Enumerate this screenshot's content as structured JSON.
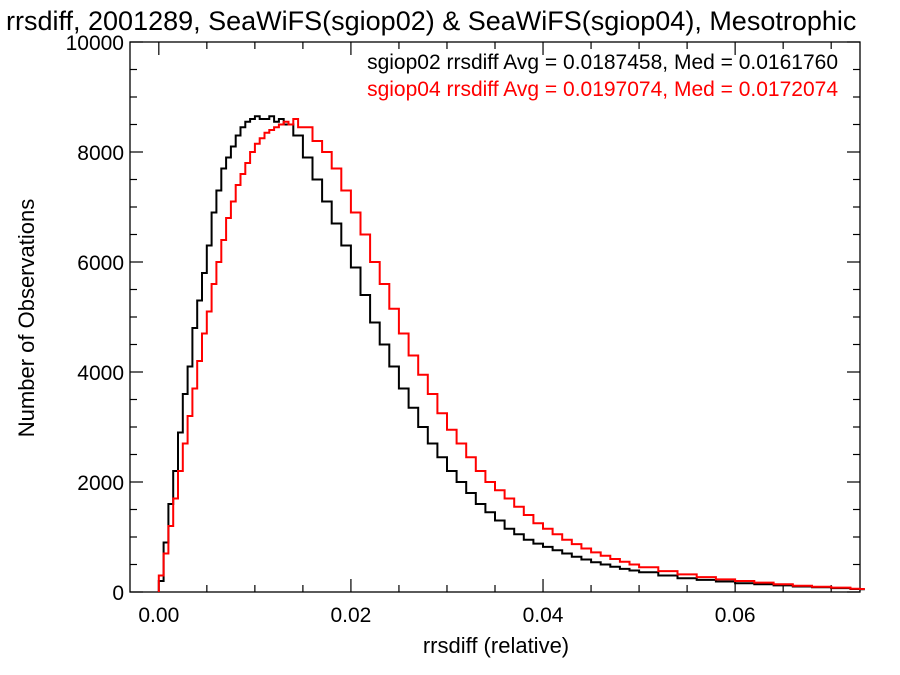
{
  "chart_data": {
    "type": "line",
    "title": "rrsdiff, 2001289, SeaWiFS(sgiop02) & SeaWiFS(sgiop04), Mesotrophic",
    "xlabel": "rrsdiff (relative)",
    "ylabel": "Number of Observations",
    "xlim": [
      -0.003,
      0.073
    ],
    "ylim": [
      0,
      10000
    ],
    "x_ticks": [
      0.0,
      0.02,
      0.04,
      0.06
    ],
    "x_tick_labels": [
      "0.00",
      "0.02",
      "0.04",
      "0.06"
    ],
    "y_ticks": [
      0,
      2000,
      4000,
      6000,
      8000,
      10000
    ],
    "y_tick_labels": [
      "0",
      "2000",
      "4000",
      "6000",
      "8000",
      "10000"
    ],
    "grid": false,
    "legend": [
      {
        "text": "sgiop02 rrsdiff Avg = 0.0187458, Med = 0.0161760",
        "color": "#000000"
      },
      {
        "text": "sgiop04 rrsdiff Avg = 0.0197074, Med = 0.0172074",
        "color": "#ff0000"
      }
    ],
    "legend_position": "top-right",
    "series": [
      {
        "color": "#000000",
        "x": [
          0.0,
          0.0005,
          0.001,
          0.0015,
          0.002,
          0.0025,
          0.003,
          0.0035,
          0.004,
          0.0045,
          0.005,
          0.0055,
          0.006,
          0.0065,
          0.007,
          0.0075,
          0.008,
          0.0085,
          0.009,
          0.0095,
          0.01,
          0.0105,
          0.011,
          0.0115,
          0.012,
          0.0125,
          0.013,
          0.014,
          0.015,
          0.016,
          0.017,
          0.018,
          0.019,
          0.02,
          0.021,
          0.022,
          0.023,
          0.024,
          0.025,
          0.026,
          0.027,
          0.028,
          0.029,
          0.03,
          0.031,
          0.032,
          0.033,
          0.034,
          0.035,
          0.036,
          0.037,
          0.038,
          0.039,
          0.04,
          0.041,
          0.042,
          0.043,
          0.044,
          0.045,
          0.046,
          0.047,
          0.048,
          0.049,
          0.05,
          0.052,
          0.054,
          0.056,
          0.058,
          0.06,
          0.062,
          0.064,
          0.066,
          0.068,
          0.07,
          0.072,
          0.073
        ],
        "values": [
          200,
          900,
          1600,
          2200,
          2900,
          3600,
          4100,
          4800,
          5300,
          5800,
          6300,
          6900,
          7300,
          7700,
          7900,
          8100,
          8300,
          8450,
          8550,
          8600,
          8650,
          8600,
          8600,
          8650,
          8550,
          8600,
          8500,
          8300,
          7900,
          7500,
          7100,
          6700,
          6300,
          5900,
          5400,
          4900,
          4500,
          4100,
          3700,
          3350,
          3000,
          2700,
          2450,
          2200,
          2000,
          1800,
          1600,
          1450,
          1300,
          1150,
          1050,
          950,
          880,
          820,
          760,
          700,
          640,
          590,
          540,
          500,
          460,
          420,
          390,
          360,
          300,
          250,
          220,
          190,
          160,
          140,
          120,
          100,
          85,
          70,
          55,
          50
        ]
      },
      {
        "color": "#ff0000",
        "x": [
          0.0,
          0.0005,
          0.001,
          0.0015,
          0.002,
          0.0025,
          0.003,
          0.0035,
          0.004,
          0.0045,
          0.005,
          0.0055,
          0.006,
          0.0065,
          0.007,
          0.0075,
          0.008,
          0.0085,
          0.009,
          0.0095,
          0.01,
          0.0105,
          0.011,
          0.0115,
          0.012,
          0.0125,
          0.013,
          0.0135,
          0.014,
          0.0145,
          0.015,
          0.016,
          0.017,
          0.018,
          0.019,
          0.02,
          0.021,
          0.022,
          0.023,
          0.024,
          0.025,
          0.026,
          0.027,
          0.028,
          0.029,
          0.03,
          0.031,
          0.032,
          0.033,
          0.034,
          0.035,
          0.036,
          0.037,
          0.038,
          0.039,
          0.04,
          0.041,
          0.042,
          0.043,
          0.044,
          0.045,
          0.046,
          0.047,
          0.048,
          0.049,
          0.05,
          0.052,
          0.054,
          0.056,
          0.058,
          0.06,
          0.062,
          0.064,
          0.066,
          0.068,
          0.07,
          0.072,
          0.073
        ],
        "values": [
          300,
          700,
          1200,
          1700,
          2200,
          2700,
          3200,
          3700,
          4200,
          4700,
          5100,
          5600,
          6000,
          6400,
          6800,
          7100,
          7400,
          7600,
          7800,
          8000,
          8150,
          8250,
          8350,
          8400,
          8450,
          8500,
          8550,
          8500,
          8600,
          8450,
          8450,
          8200,
          8000,
          7700,
          7300,
          6900,
          6500,
          6000,
          5600,
          5150,
          4700,
          4300,
          3950,
          3600,
          3250,
          2950,
          2700,
          2450,
          2200,
          2000,
          1850,
          1700,
          1550,
          1400,
          1250,
          1150,
          1050,
          950,
          870,
          790,
          720,
          660,
          600,
          550,
          500,
          450,
          380,
          320,
          270,
          230,
          200,
          170,
          140,
          115,
          95,
          80,
          60,
          55
        ]
      }
    ]
  }
}
